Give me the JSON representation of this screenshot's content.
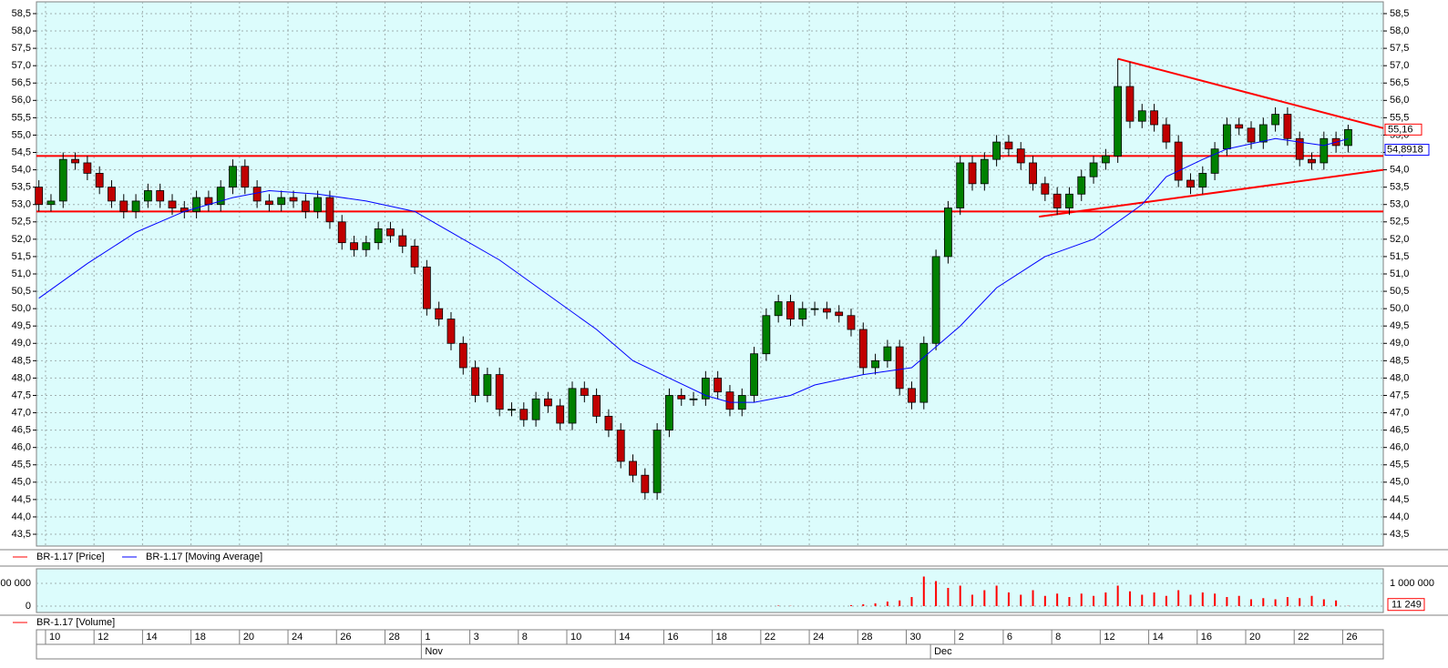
{
  "chart_data": [
    {
      "type": "candlestick",
      "xlim": [
        -0.2,
        110.9
      ],
      "ylim": [
        43.16,
        58.84
      ],
      "yticks": [
        {
          "value": 43.5,
          "label": "43,5"
        },
        {
          "value": 44,
          "label": "44,0"
        },
        {
          "value": 44.5,
          "label": "44,5"
        },
        {
          "value": 45,
          "label": "45,0"
        },
        {
          "value": 45.5,
          "label": "45,5"
        },
        {
          "value": 46,
          "label": "46,0"
        },
        {
          "value": 46.5,
          "label": "46,5"
        },
        {
          "value": 47,
          "label": "47,0"
        },
        {
          "value": 47.5,
          "label": "47,5"
        },
        {
          "value": 48,
          "label": "48,0"
        },
        {
          "value": 48.5,
          "label": "48,5"
        },
        {
          "value": 49,
          "label": "49,0"
        },
        {
          "value": 49.5,
          "label": "49,5"
        },
        {
          "value": 50,
          "label": "50,0"
        },
        {
          "value": 50.5,
          "label": "50,5"
        },
        {
          "value": 51,
          "label": "51,0"
        },
        {
          "value": 51.5,
          "label": "51,5"
        },
        {
          "value": 52,
          "label": "52,0"
        },
        {
          "value": 52.5,
          "label": "52,5"
        },
        {
          "value": 53,
          "label": "53,0"
        },
        {
          "value": 53.5,
          "label": "53,5"
        },
        {
          "value": 54,
          "label": "54,0"
        },
        {
          "value": 54.5,
          "label": "54,5"
        },
        {
          "value": 55,
          "label": "55,0"
        },
        {
          "value": 55.5,
          "label": "55,5"
        },
        {
          "value": 56,
          "label": "56,0"
        },
        {
          "value": 56.5,
          "label": "56,5"
        },
        {
          "value": 57,
          "label": "57,0"
        },
        {
          "value": 57.5,
          "label": "57,5"
        },
        {
          "value": 58,
          "label": "58,0"
        },
        {
          "value": 58.5,
          "label": "58,5"
        }
      ],
      "xticks": [
        {
          "value": 1,
          "label": "10"
        },
        {
          "value": 5,
          "label": "12"
        },
        {
          "value": 9,
          "label": "14"
        },
        {
          "value": 13,
          "label": "18"
        },
        {
          "value": 17,
          "label": "20"
        },
        {
          "value": 21,
          "label": "24"
        },
        {
          "value": 25,
          "label": "26"
        },
        {
          "value": 29,
          "label": "28"
        },
        {
          "value": 32,
          "label": "1"
        },
        {
          "value": 36,
          "label": "3"
        },
        {
          "value": 40,
          "label": "8"
        },
        {
          "value": 44,
          "label": "10"
        },
        {
          "value": 48,
          "label": "14"
        },
        {
          "value": 52,
          "label": "16"
        },
        {
          "value": 56,
          "label": "18"
        },
        {
          "value": 60,
          "label": "22"
        },
        {
          "value": 64,
          "label": "24"
        },
        {
          "value": 68,
          "label": "28"
        },
        {
          "value": 72,
          "label": "30"
        },
        {
          "value": 76,
          "label": "2"
        },
        {
          "value": 80,
          "label": "6"
        },
        {
          "value": 84,
          "label": "8"
        },
        {
          "value": 88,
          "label": "12"
        },
        {
          "value": 92,
          "label": "14"
        },
        {
          "value": 96,
          "label": "16"
        },
        {
          "value": 100,
          "label": "20"
        },
        {
          "value": 104,
          "label": "22"
        },
        {
          "value": 108,
          "label": "26"
        }
      ],
      "months": [
        {
          "value": 32,
          "label": "Nov"
        },
        {
          "value": 74,
          "label": "Dec"
        }
      ],
      "grid": true,
      "hlines": [
        54.4,
        52.8
      ],
      "lines": [
        {
          "x": [
            89,
            110.9
          ],
          "y": [
            57.2,
            55.2
          ]
        },
        {
          "x": [
            82.5,
            110.9
          ],
          "y": [
            52.65,
            54.0
          ]
        }
      ],
      "series": [
        {
          "name": "BR-1.17 [Price]",
          "color": "#ff0000",
          "up_color": "#008000",
          "down_color": "#c00000",
          "last_label": "55,16",
          "open": [
            53.5,
            53.0,
            53.1,
            54.3,
            54.2,
            53.9,
            53.5,
            53.1,
            52.8,
            53.1,
            53.4,
            53.1,
            52.9,
            52.8,
            53.2,
            53.0,
            53.5,
            54.1,
            53.5,
            53.1,
            53.0,
            53.2,
            53.1,
            52.8,
            53.2,
            52.5,
            51.9,
            51.7,
            51.9,
            52.3,
            52.1,
            51.8,
            51.2,
            50.0,
            49.7,
            49.0,
            48.3,
            47.5,
            48.1,
            47.1,
            47.1,
            46.8,
            47.4,
            47.2,
            46.7,
            47.7,
            47.5,
            46.9,
            46.5,
            45.6,
            45.2,
            44.7,
            46.5,
            47.5,
            47.4,
            47.4,
            48.0,
            47.6,
            47.1,
            47.5,
            48.7,
            49.8,
            50.2,
            49.7,
            50.0,
            50.0,
            49.9,
            49.8,
            49.4,
            48.3,
            48.5,
            48.9,
            47.7,
            47.3,
            49.0,
            51.5,
            52.9,
            54.2,
            53.6,
            54.3,
            54.8,
            54.6,
            54.2,
            53.6,
            53.3,
            52.9,
            53.3,
            53.8,
            54.2,
            54.4,
            56.4,
            55.4,
            55.7,
            55.3,
            54.8,
            53.7,
            53.5,
            53.9,
            54.6,
            55.3,
            55.2,
            54.8,
            55.3,
            55.6,
            54.9,
            54.3,
            54.2,
            54.9,
            54.7
          ],
          "high": [
            53.7,
            53.3,
            54.5,
            54.5,
            54.4,
            54.1,
            53.7,
            53.3,
            53.3,
            53.6,
            53.6,
            53.3,
            53.1,
            53.4,
            53.4,
            53.7,
            54.3,
            54.3,
            53.7,
            53.3,
            53.4,
            53.4,
            53.3,
            53.4,
            53.4,
            52.7,
            52.1,
            52.1,
            52.5,
            52.5,
            52.3,
            52.0,
            51.4,
            50.2,
            49.9,
            49.2,
            48.5,
            48.3,
            48.3,
            47.3,
            47.3,
            47.6,
            47.6,
            47.4,
            47.9,
            47.9,
            47.7,
            47.1,
            46.7,
            45.8,
            45.4,
            46.7,
            47.7,
            47.7,
            47.6,
            48.2,
            48.2,
            47.8,
            47.7,
            48.9,
            50.0,
            50.4,
            50.4,
            50.2,
            50.2,
            50.2,
            50.1,
            50.0,
            49.6,
            48.7,
            49.1,
            49.1,
            47.9,
            49.2,
            51.7,
            53.1,
            54.4,
            54.4,
            54.5,
            55.0,
            55.0,
            54.8,
            54.4,
            53.8,
            53.5,
            53.5,
            54.0,
            54.4,
            54.6,
            57.2,
            57.1,
            55.9,
            55.9,
            55.5,
            55.0,
            53.9,
            54.1,
            54.8,
            55.5,
            55.5,
            55.4,
            55.5,
            55.8,
            55.8,
            55.1,
            54.5,
            55.1,
            55.1,
            55.3
          ],
          "low": [
            52.8,
            52.8,
            52.9,
            54.0,
            53.7,
            53.3,
            52.9,
            52.6,
            52.6,
            52.9,
            52.9,
            52.7,
            52.6,
            52.6,
            52.8,
            52.8,
            53.3,
            53.3,
            52.9,
            52.8,
            52.8,
            52.9,
            52.6,
            52.6,
            52.3,
            51.7,
            51.5,
            51.5,
            51.7,
            51.9,
            51.6,
            51.0,
            49.8,
            49.5,
            48.8,
            48.1,
            47.3,
            47.3,
            46.9,
            46.9,
            46.6,
            46.6,
            47.0,
            46.5,
            46.5,
            47.3,
            46.7,
            46.3,
            45.4,
            45.0,
            44.5,
            44.5,
            46.3,
            47.2,
            47.2,
            47.2,
            47.4,
            46.9,
            46.9,
            47.3,
            48.5,
            49.6,
            49.5,
            49.5,
            49.8,
            49.7,
            49.6,
            49.2,
            48.1,
            48.1,
            48.3,
            47.5,
            47.1,
            47.1,
            48.8,
            51.3,
            52.7,
            53.4,
            53.4,
            54.1,
            54.4,
            54.0,
            53.4,
            53.1,
            52.7,
            52.7,
            53.1,
            53.6,
            54.0,
            54.2,
            55.2,
            55.2,
            55.1,
            54.6,
            53.5,
            53.3,
            53.3,
            53.7,
            54.4,
            55.0,
            54.6,
            54.6,
            55.1,
            54.7,
            54.1,
            54.0,
            54.0,
            54.5,
            54.5
          ],
          "close": [
            53.0,
            53.1,
            54.3,
            54.2,
            53.9,
            53.5,
            53.1,
            52.8,
            53.1,
            53.4,
            53.1,
            52.9,
            52.8,
            53.2,
            53.0,
            53.5,
            54.1,
            53.5,
            53.1,
            53.0,
            53.2,
            53.1,
            52.8,
            53.2,
            52.5,
            51.9,
            51.7,
            51.9,
            52.3,
            52.1,
            51.8,
            51.2,
            50.0,
            49.7,
            49.0,
            48.3,
            47.5,
            48.1,
            47.1,
            47.1,
            46.8,
            47.4,
            47.2,
            46.7,
            47.7,
            47.5,
            46.9,
            46.5,
            45.6,
            45.2,
            44.7,
            46.5,
            47.5,
            47.4,
            47.4,
            48.0,
            47.6,
            47.1,
            47.5,
            48.7,
            49.8,
            50.2,
            49.7,
            50.0,
            50.0,
            49.9,
            49.8,
            49.4,
            48.3,
            48.5,
            48.9,
            47.7,
            47.3,
            49.0,
            51.5,
            52.9,
            54.2,
            53.6,
            54.3,
            54.8,
            54.6,
            54.2,
            53.6,
            53.3,
            52.9,
            53.3,
            53.8,
            54.2,
            54.4,
            56.4,
            55.4,
            55.7,
            55.3,
            54.8,
            53.7,
            53.5,
            53.9,
            54.6,
            55.3,
            55.2,
            54.8,
            55.3,
            55.6,
            54.9,
            54.3,
            54.2,
            54.9,
            54.7,
            55.16
          ]
        },
        {
          "name": "BR-1.17 [Moving Average]",
          "color": "#0000ff",
          "last_label": "54,8918",
          "x": [
            0,
            4,
            8,
            12,
            16,
            19,
            23,
            27,
            31,
            34,
            38,
            42,
            46,
            49,
            52,
            55,
            57,
            59,
            62,
            64,
            68,
            72,
            76,
            79,
            83,
            87,
            91,
            93,
            96,
            98,
            102,
            104,
            106,
            108
          ],
          "values": [
            50.3,
            51.3,
            52.2,
            52.8,
            53.2,
            53.4,
            53.3,
            53.1,
            52.8,
            52.2,
            51.4,
            50.4,
            49.4,
            48.5,
            48.0,
            47.5,
            47.3,
            47.3,
            47.5,
            47.8,
            48.1,
            48.3,
            49.5,
            50.6,
            51.5,
            52.0,
            53.0,
            53.8,
            54.3,
            54.6,
            54.9,
            54.8,
            54.7,
            54.8918
          ]
        }
      ]
    },
    {
      "type": "bar",
      "ylim": [
        -160000,
        1560000
      ],
      "yticks": [
        {
          "value": 1000000,
          "label": "1 000 000"
        },
        0
      ],
      "series": [
        {
          "name": "BR-1.17 [Volume]",
          "color": "#ff0000",
          "last_label": "11 249",
          "values": [
            0,
            0,
            0,
            0,
            0,
            0,
            0,
            0,
            0,
            0,
            0,
            0,
            0,
            0,
            0,
            0,
            0,
            0,
            0,
            0,
            0,
            0,
            0,
            0,
            0,
            0,
            0,
            0,
            0,
            0,
            0,
            0,
            0,
            0,
            0,
            0,
            0,
            0,
            0,
            0,
            0,
            0,
            0,
            0,
            0,
            0,
            0,
            0,
            0,
            0,
            0,
            0,
            0,
            0,
            0,
            0,
            0,
            0,
            0,
            0,
            0,
            20000,
            10000,
            0,
            0,
            0,
            0,
            40000,
            80000,
            120000,
            200000,
            250000,
            400000,
            1300000,
            1100000,
            800000,
            900000,
            500000,
            700000,
            900000,
            600000,
            500000,
            700000,
            450000,
            550000,
            400000,
            550000,
            450000,
            600000,
            900000,
            650000,
            500000,
            600000,
            450000,
            700000,
            500000,
            600000,
            550000,
            400000,
            450000,
            300000,
            350000,
            300000,
            400000,
            350000,
            450000,
            300000,
            250000,
            11249
          ]
        }
      ]
    }
  ]
}
